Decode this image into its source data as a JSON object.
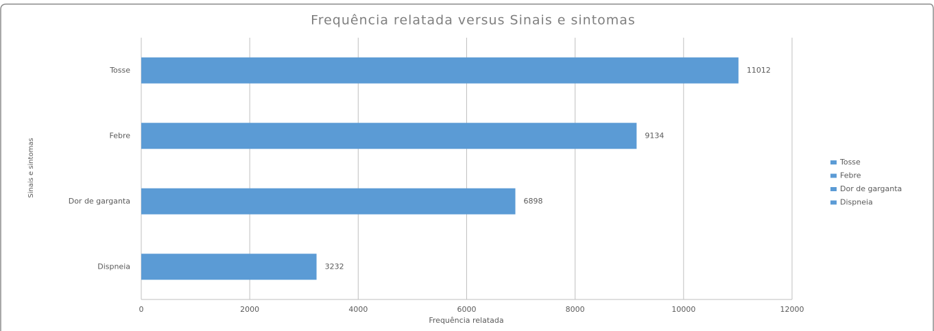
{
  "chart_data": {
    "type": "bar",
    "orientation": "horizontal",
    "title": "Frequência relatada  versus Sinais e sintomas",
    "x_label": "Frequência relatada",
    "y_label": "Sinais e sintomas",
    "categories": [
      "Tosse",
      "Febre",
      "Dor de garganta",
      "Dispneia"
    ],
    "values": [
      11012,
      9134,
      6898,
      3232
    ],
    "color": "#5b9bd5",
    "xlim": [
      0,
      12000
    ],
    "xticks": [
      0,
      2000,
      4000,
      6000,
      8000,
      10000,
      12000
    ],
    "grid": true,
    "legend": "right"
  }
}
